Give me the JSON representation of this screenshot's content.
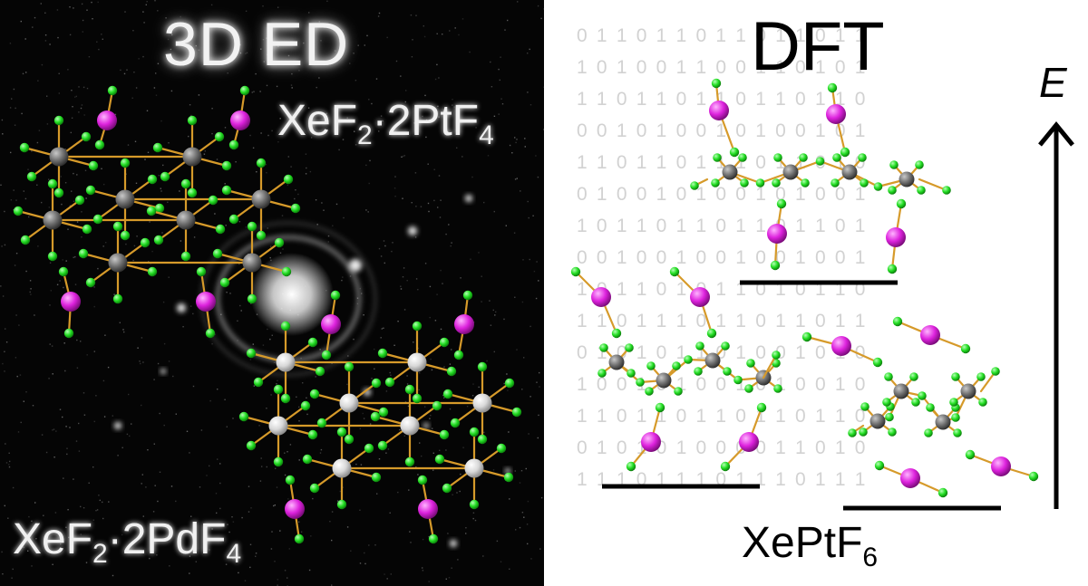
{
  "left_panel": {
    "title": "3D ED",
    "formula_top": {
      "main": "XeF",
      "sub1": "2",
      "mid": "·2PtF",
      "sub2": "4"
    },
    "formula_bottom": {
      "main": "XeF",
      "sub1": "2",
      "mid": "·2PdF",
      "sub2": "4"
    }
  },
  "right_panel": {
    "title": "DFT",
    "energy_axis_label": "E",
    "formula": {
      "main": "XePtF",
      "sub": "6"
    },
    "background_digits": [
      "0 1 1 0 1 1 0 1 1 0 1 1 0 1 1",
      "1 0 1 0 0 1 1 0 0 1 1 0 1 0 1",
      "1 1 0 1 1 0 1 1 0 1 1 0 1 1 0",
      "0 0 1 0 1 0 0 1 0 1 0 0 1 0 1",
      "1 1 0 1 1 0 1 1 1 0 1 1 0 1 0",
      "0 1 0 0 1 0 1 0 0 1 0 1 0 0 1",
      "1 0 1 1 0 1 1 0 1 1 0 1 1 0 1",
      "0 0 1 0 0 1 0 0 1 0 0 1 0 0 1",
      "1 0 1 1 0 1 0 1 1 0 1 0 1 1 0",
      "1 1 0 1 1 1 0 1 1 0 1 1 0 1 1",
      "0 1 0 1 0 1 1 0 1 0 0 1 0 1 0",
      "1 0 0 1 0 1 0 0 1 0 1 0 0 1 0",
      "1 1 0 1 1 0 1 1 0 1 1 0 1 1 0",
      "0 1 0 1 0 1 0 0 0 0 1 1 0 1 0",
      "1 1 1 0 1 1 1 0 1 1 1 0 1 1 1"
    ]
  },
  "colors": {
    "left_background": "#050505",
    "right_background": "#ffffff",
    "fluorine": "#22dd22",
    "xenon": "#dd22dd",
    "platinum_dft": "#707070",
    "metal_left_top": "#6e6e6e",
    "metal_left_bottom": "#d8d8d8",
    "bond": "#d69a2a",
    "digits": "#d2d2d2"
  }
}
